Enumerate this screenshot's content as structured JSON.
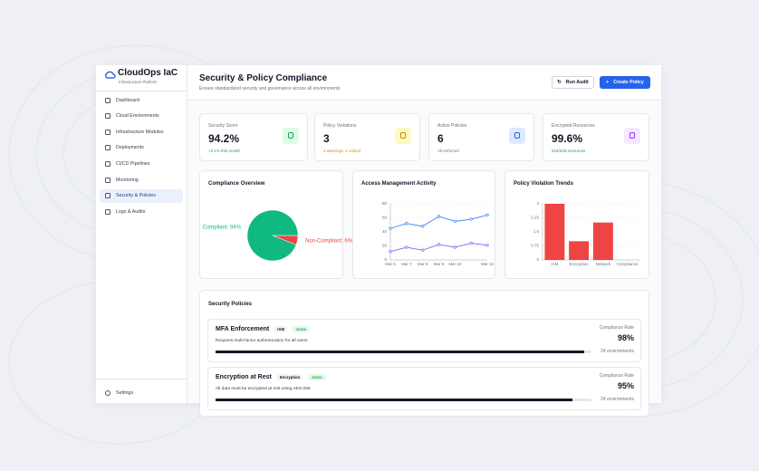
{
  "sidebar": {
    "brand": "CloudOps IaC",
    "subtitle": "Infrastructure Platform",
    "nav": [
      "Dashboard",
      "Cloud Environments",
      "Infrastructure Modules",
      "Deployments",
      "CI/CD Pipelines",
      "Monitoring",
      "Security & Policies",
      "Logs & Audits"
    ],
    "active": "Security & Policies",
    "settings": "Settings"
  },
  "header": {
    "title": "Security & Policy Compliance",
    "subtitle": "Ensure standardized security and governance across all environments",
    "buttons": [
      "Run Audit",
      "Create Policy"
    ]
  },
  "stats": [
    {
      "label": "Security Score",
      "value": "94.2%",
      "note": "+2.1% this month",
      "color": "#16a34a"
    },
    {
      "label": "Policy Violations",
      "value": "3",
      "note": "2 warnings, 1 critical",
      "color": "#ca8a04"
    },
    {
      "label": "Active Policies",
      "value": "6",
      "note": "All enforced",
      "color": "#6b7280"
    },
    {
      "label": "Encrypted Resources",
      "value": "99.6%",
      "note": "224/225 resources",
      "color": "#16a34a"
    }
  ],
  "chart_data": [
    {
      "type": "pie",
      "title": "Compliance Overview",
      "categories": [
        "Compliant",
        "Non-Compliant"
      ],
      "values": [
        94,
        6
      ],
      "value_labels": [
        "Compliant: 94%",
        "Non-Compliant: 6%"
      ],
      "colors": [
        "#10b981",
        "#ef4444"
      ]
    },
    {
      "type": "line",
      "title": "Access Management Activity",
      "categories": [
        "Mar 6",
        "Mar 7",
        "Mar 8",
        "Mar 9",
        "Mar 10",
        null,
        "Mar 12"
      ],
      "series": [
        {
          "color": "#3b82f6",
          "values": [
            45,
            52,
            48,
            62,
            55,
            58,
            64
          ]
        },
        {
          "color": "#8b5cf6",
          "values": [
            12,
            18,
            14,
            22,
            18,
            24,
            21
          ]
        }
      ],
      "ylim": [
        0,
        80
      ],
      "yticks": [
        0,
        20,
        40,
        60,
        80
      ],
      "grid": true
    },
    {
      "type": "bar",
      "title": "Policy Violation Trends",
      "categories": [
        "IAM",
        "Encryption",
        "Network",
        "Compliance"
      ],
      "values": [
        3,
        1,
        2,
        0
      ],
      "color": "#ef4444",
      "ylim": [
        0,
        3
      ],
      "yticks": [
        0,
        0.75,
        1.5,
        2.25,
        3
      ],
      "grid": true
    }
  ],
  "policies": {
    "title": "Security Policies",
    "items": [
      {
        "name": "MFA Enforcement",
        "tag": "IAM",
        "status": "active",
        "description": "Requires multi-factor authentication for all users",
        "rate_title": "Compliance Rate",
        "rate": 98,
        "rate_label": "98%",
        "environments": "24 environments"
      },
      {
        "name": "Encryption at Rest",
        "tag": "Encryption",
        "status": "active",
        "description": "All data must be encrypted at rest using AES-256",
        "rate_title": "Compliance Rate",
        "rate": 95,
        "rate_label": "95%",
        "environments": "24 environments"
      }
    ]
  }
}
